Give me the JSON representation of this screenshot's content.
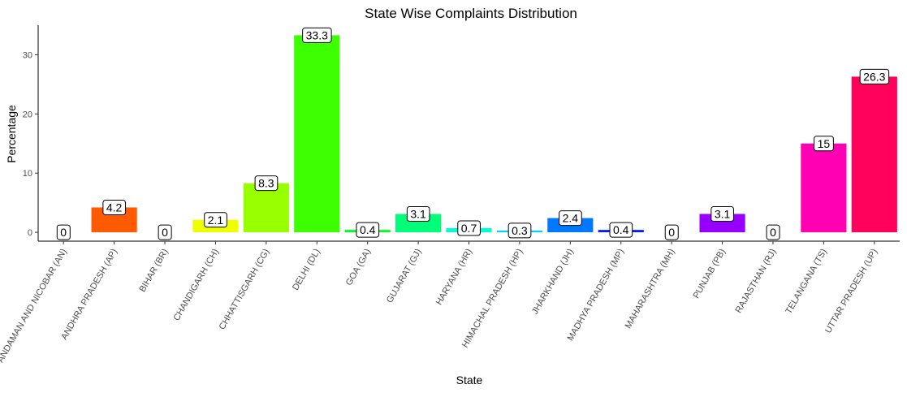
{
  "chart_data": {
    "type": "bar",
    "title": "State Wise Complaints Distribution",
    "xlabel": "State",
    "ylabel": "Percentage",
    "ylim": [
      -1.5,
      35
    ],
    "yticks": [
      0,
      10,
      20,
      30
    ],
    "grid": false,
    "legend": "none",
    "categories": [
      "ANDAMAN AND NICOBAR (AN)",
      "ANDHRA PRADESH (AP)",
      "BIHAR (BR)",
      "CHANDIGARH (CH)",
      "CHHATTISGARH (CG)",
      "DELHI (DL)",
      "GOA (GA)",
      "GUJARAT (GJ)",
      "HARYANA (HR)",
      "HIMACHAL PRADESH (HP)",
      "JHARKHAND (JH)",
      "MADHYA PRADESH (MP)",
      "MAHARASHTRA (MH)",
      "PUNJAB (PB)",
      "RAJASTHAN (RJ)",
      "TELANGANA (TS)",
      "UTTAR PRADESH (UP)"
    ],
    "values": [
      0,
      4.2,
      0,
      2.1,
      8.3,
      33.3,
      0.4,
      3.1,
      0.7,
      0.3,
      2.4,
      0.4,
      0,
      3.1,
      0,
      15,
      26.3
    ],
    "labels": [
      "0",
      "4.2",
      "0",
      "2.1",
      "8.3",
      "33.3",
      "0.4",
      "3.1",
      "0.7",
      "0.3",
      "2.4",
      "0.4",
      "0",
      "3.1",
      "0",
      "15",
      "26.3"
    ],
    "colors": [
      "#FF0000",
      "#FF5A00",
      "#FFB300",
      "#F0FF00",
      "#97FF00",
      "#3CFF00",
      "#00FF1E",
      "#00FF78",
      "#00FFD2",
      "#00D2FF",
      "#0078FF",
      "#001EFF",
      "#3C00FF",
      "#9700FF",
      "#F000FF",
      "#FF00B3",
      "#FF005A"
    ]
  }
}
